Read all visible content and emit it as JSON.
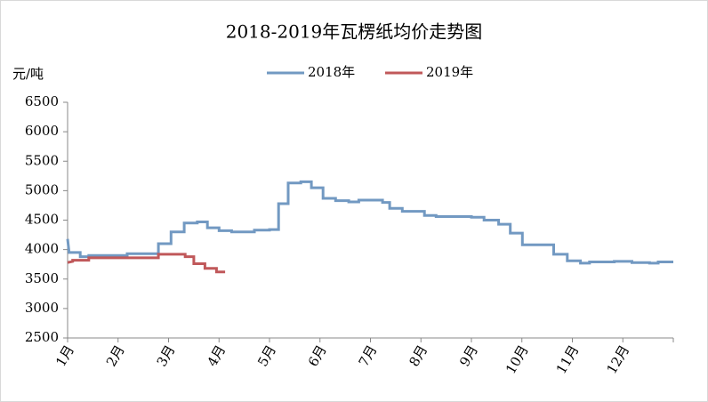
{
  "chart_data": {
    "type": "line",
    "title": "2018-2019年瓦楞纸均价走势图",
    "y_label": "元/吨",
    "xlim": [
      1,
      13
    ],
    "xticks": [
      {
        "value": 1,
        "label": "1月"
      },
      {
        "value": 2,
        "label": "2月"
      },
      {
        "value": 3,
        "label": "3月"
      },
      {
        "value": 4,
        "label": "4月"
      },
      {
        "value": 5,
        "label": "5月"
      },
      {
        "value": 6,
        "label": "6月"
      },
      {
        "value": 7,
        "label": "7月"
      },
      {
        "value": 8,
        "label": "8月"
      },
      {
        "value": 9,
        "label": "9月"
      },
      {
        "value": 10,
        "label": "10月"
      },
      {
        "value": 11,
        "label": "11月"
      },
      {
        "value": 12,
        "label": "12月"
      }
    ],
    "ylim": [
      2500,
      6500
    ],
    "yticks": [
      2500,
      3000,
      3500,
      4000,
      4500,
      5000,
      5500,
      6000,
      6500
    ],
    "grid": false,
    "legend": "top",
    "series": [
      {
        "name": "2018年",
        "color": "#7299c2",
        "x": [
          1,
          1.03,
          1.25,
          1.25,
          1.42,
          1.42,
          2.18,
          2.18,
          2.8,
          2.8,
          3.05,
          3.05,
          3.31,
          3.31,
          3.57,
          3.57,
          3.77,
          3.77,
          4.0,
          4.0,
          4.25,
          4.25,
          4.7,
          4.7,
          5.0,
          5.0,
          5.18,
          5.18,
          5.37,
          5.37,
          5.62,
          5.62,
          5.83,
          5.83,
          6.06,
          6.06,
          6.31,
          6.31,
          6.57,
          6.57,
          6.77,
          6.77,
          7.24,
          7.24,
          7.38,
          7.38,
          7.63,
          7.63,
          8.07,
          8.07,
          8.3,
          8.3,
          9.0,
          9.0,
          9.25,
          9.25,
          9.54,
          9.54,
          9.77,
          9.77,
          10.01,
          10.01,
          10.63,
          10.63,
          10.9,
          10.9,
          11.16,
          11.16,
          11.34,
          11.34,
          11.83,
          11.83,
          12.18,
          12.18,
          12.53,
          12.53,
          12.7,
          12.7,
          13
        ],
        "values": [
          4180,
          3950,
          3950,
          3880,
          3880,
          3900,
          3900,
          3930,
          3930,
          4100,
          4100,
          4300,
          4300,
          4450,
          4450,
          4470,
          4470,
          4370,
          4370,
          4320,
          4320,
          4300,
          4300,
          4330,
          4330,
          4340,
          4340,
          4780,
          4780,
          5130,
          5130,
          5150,
          5150,
          5050,
          5050,
          4870,
          4870,
          4830,
          4830,
          4810,
          4810,
          4840,
          4840,
          4800,
          4800,
          4700,
          4700,
          4650,
          4650,
          4580,
          4580,
          4560,
          4560,
          4550,
          4550,
          4500,
          4500,
          4430,
          4430,
          4280,
          4280,
          4080,
          4080,
          3920,
          3920,
          3810,
          3810,
          3770,
          3770,
          3790,
          3790,
          3800,
          3800,
          3780,
          3780,
          3770,
          3770,
          3790,
          3790
        ]
      },
      {
        "name": "2019年",
        "color": "#c0585a",
        "x": [
          1,
          1.1,
          1.1,
          1.42,
          1.42,
          2.8,
          2.8,
          3.33,
          3.33,
          3.5,
          3.5,
          3.72,
          3.72,
          3.95,
          3.95,
          4.12
        ],
        "values": [
          3780,
          3800,
          3820,
          3820,
          3860,
          3860,
          3920,
          3920,
          3880,
          3880,
          3760,
          3760,
          3680,
          3680,
          3620,
          3620
        ]
      }
    ]
  }
}
